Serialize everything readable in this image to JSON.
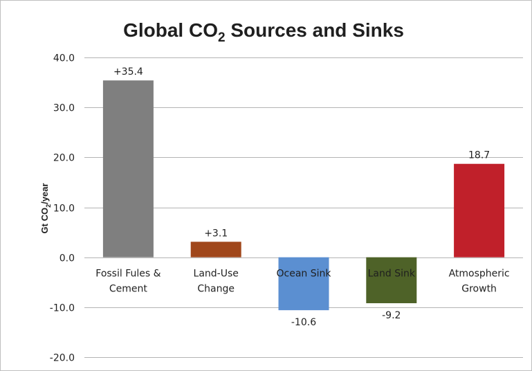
{
  "chart_data": {
    "type": "bar",
    "title": "Global CO",
    "title_subscript": "2",
    "title_suffix": " Sources and Sinks",
    "ylabel": "Gt CO",
    "ylabel_subscript": "2",
    "ylabel_suffix": "/year",
    "xlabel": "",
    "ylim": [
      -20,
      40
    ],
    "yticks": [
      40,
      30,
      20,
      10,
      0,
      -10,
      -20
    ],
    "ytick_labels": [
      "40.0",
      "30.0",
      "20.0",
      "10.0",
      "0.0",
      "-10.0",
      "-20.0"
    ],
    "grid": true,
    "legend": "none",
    "categories": [
      [
        "Fossil Fules &",
        "Cement"
      ],
      [
        "Land-Use",
        "Change"
      ],
      [
        "Ocean Sink"
      ],
      [
        "Land Sink"
      ],
      [
        "Atmospheric",
        "Growth"
      ]
    ],
    "values": [
      35.4,
      3.1,
      -10.6,
      -9.2,
      18.7
    ],
    "data_labels": [
      "+35.4",
      "+3.1",
      "-10.6",
      "-9.2",
      "18.7"
    ],
    "colors": [
      "#7f7f7f",
      "#a0471b",
      "#5b8fd1",
      "#4e6228",
      "#c0202a"
    ]
  }
}
